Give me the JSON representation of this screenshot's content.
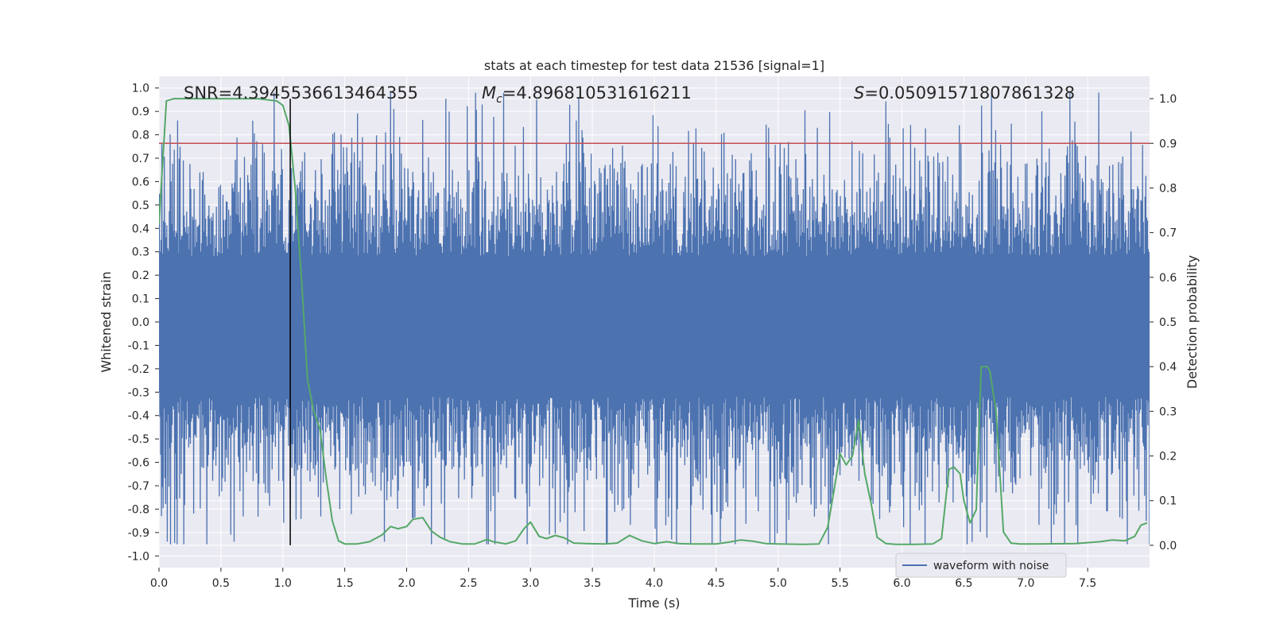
{
  "chart_data": {
    "type": "line",
    "title": "stats at each timestep for test data 21536 [signal=1]",
    "xlabel": "Time (s)",
    "ylabel_left": "Whitened strain",
    "ylabel_right": "Detection probability",
    "xlim": [
      0.0,
      8.0
    ],
    "ylim_left": [
      -1.05,
      1.05
    ],
    "ylim_right": [
      -0.05,
      1.05
    ],
    "x_ticks": [
      "0.0",
      "0.5",
      "1.0",
      "1.5",
      "2.0",
      "2.5",
      "3.0",
      "3.5",
      "4.0",
      "4.5",
      "5.0",
      "5.5",
      "6.0",
      "6.5",
      "7.0",
      "7.5"
    ],
    "y_left_ticks": [
      "1.0",
      "0.9",
      "0.8",
      "0.7",
      "0.6",
      "0.5",
      "0.4",
      "0.3",
      "0.2",
      "0.1",
      "0.0",
      "-0.1",
      "-0.2",
      "-0.3",
      "-0.4",
      "-0.5",
      "-0.6",
      "-0.7",
      "-0.8",
      "-0.9",
      "-1.0"
    ],
    "y_right_ticks": [
      "1.0",
      "0.9",
      "0.8",
      "0.7",
      "0.6",
      "0.5",
      "0.4",
      "0.3",
      "0.2",
      "0.1",
      "0.0"
    ],
    "grid": true,
    "annotations": {
      "snr": "SNR=4.3945536613464355",
      "mc_symbol": "M",
      "mc_sub": "c",
      "mc_value": "=4.896810531616211",
      "s_symbol": "S",
      "s_value": "=0.05091571807861328"
    },
    "threshold": {
      "axis": "right",
      "y": 0.9,
      "color": "#c44e52"
    },
    "marker_time": 1.06,
    "legend": {
      "label": "waveform with noise",
      "position": "lower-right"
    },
    "series": [
      {
        "name": "waveform with noise",
        "axis": "left",
        "color": "#4c72b0",
        "kind": "strain_noise",
        "sigma": 0.26,
        "samples": 1200
      },
      {
        "name": "detection probability",
        "axis": "right",
        "color": "#55a868",
        "x": [
          0.0,
          0.06,
          0.12,
          0.2,
          0.4,
          0.6,
          0.8,
          0.95,
          1.0,
          1.05,
          1.1,
          1.15,
          1.2,
          1.25,
          1.3,
          1.35,
          1.4,
          1.45,
          1.5,
          1.6,
          1.7,
          1.8,
          1.87,
          1.93,
          2.0,
          2.05,
          2.13,
          2.2,
          2.27,
          2.35,
          2.45,
          2.55,
          2.65,
          2.7,
          2.8,
          2.88,
          2.95,
          3.0,
          3.07,
          3.13,
          3.2,
          3.27,
          3.35,
          3.45,
          3.6,
          3.7,
          3.8,
          3.9,
          4.0,
          4.1,
          4.2,
          4.3,
          4.5,
          4.6,
          4.7,
          4.8,
          4.9,
          5.0,
          5.2,
          5.33,
          5.4,
          5.45,
          5.5,
          5.55,
          5.6,
          5.65,
          5.7,
          5.75,
          5.8,
          5.87,
          5.95,
          6.1,
          6.25,
          6.32,
          6.38,
          6.42,
          6.47,
          6.5,
          6.55,
          6.6,
          6.64,
          6.69,
          6.71,
          6.76,
          6.82,
          6.88,
          6.95,
          7.1,
          7.4,
          7.6,
          7.7,
          7.8,
          7.88,
          7.93,
          7.98
        ],
        "y": [
          0.72,
          0.995,
          1.0,
          1.0,
          1.0,
          1.0,
          1.0,
          0.995,
          0.985,
          0.94,
          0.8,
          0.6,
          0.37,
          0.3,
          0.26,
          0.15,
          0.055,
          0.01,
          0.003,
          0.003,
          0.008,
          0.023,
          0.042,
          0.037,
          0.042,
          0.058,
          0.062,
          0.032,
          0.018,
          0.008,
          0.003,
          0.003,
          0.013,
          0.008,
          0.003,
          0.01,
          0.038,
          0.052,
          0.02,
          0.015,
          0.022,
          0.017,
          0.005,
          0.004,
          0.003,
          0.005,
          0.022,
          0.01,
          0.004,
          0.008,
          0.004,
          0.003,
          0.003,
          0.007,
          0.012,
          0.009,
          0.004,
          0.003,
          0.002,
          0.003,
          0.04,
          0.12,
          0.205,
          0.18,
          0.2,
          0.28,
          0.16,
          0.095,
          0.018,
          0.004,
          0.002,
          0.002,
          0.003,
          0.015,
          0.17,
          0.175,
          0.16,
          0.1,
          0.05,
          0.08,
          0.4,
          0.4,
          0.39,
          0.3,
          0.03,
          0.005,
          0.003,
          0.003,
          0.004,
          0.008,
          0.012,
          0.01,
          0.02,
          0.045,
          0.05
        ]
      }
    ]
  }
}
